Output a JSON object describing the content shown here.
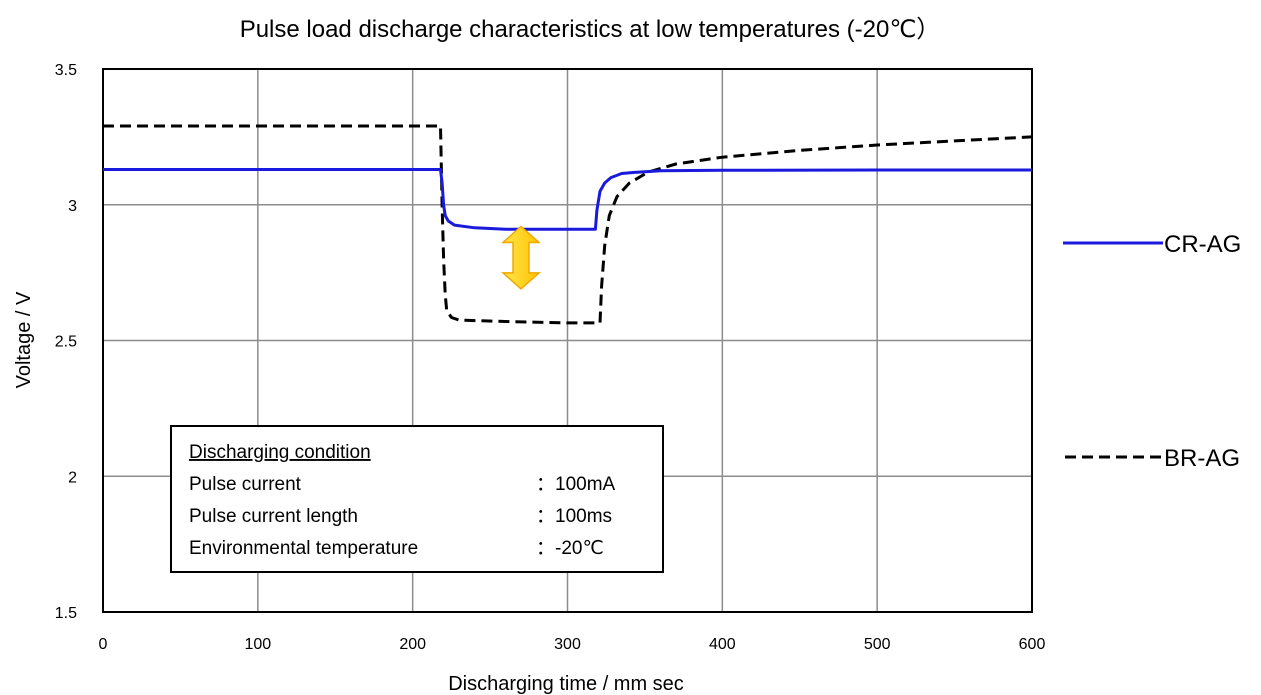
{
  "chart_data": {
    "type": "line",
    "title": "Pulse load discharge characteristics at low temperatures (-20℃）",
    "xlabel": "Discharging time / mm sec",
    "ylabel": "Voltage / V",
    "xlim": [
      0,
      600
    ],
    "ylim": [
      1.5,
      3.5
    ],
    "x_ticks": [
      "0",
      "100",
      "200",
      "300",
      "400",
      "500",
      "600"
    ],
    "y_ticks": [
      "1.5",
      "2",
      "2.5",
      "3",
      "3.5"
    ],
    "grid": true,
    "legend_position": "right",
    "series": [
      {
        "name": "CR-AG",
        "style": "solid",
        "color": "#1a1adc",
        "points": [
          [
            0,
            3.13
          ],
          [
            218,
            3.13
          ],
          [
            219,
            3.08
          ],
          [
            220,
            3.0
          ],
          [
            221,
            2.96
          ],
          [
            223,
            2.94
          ],
          [
            227,
            2.925
          ],
          [
            240,
            2.915
          ],
          [
            260,
            2.91
          ],
          [
            300,
            2.91
          ],
          [
            318,
            2.91
          ],
          [
            319,
            2.98
          ],
          [
            321,
            3.05
          ],
          [
            324,
            3.08
          ],
          [
            328,
            3.1
          ],
          [
            335,
            3.115
          ],
          [
            345,
            3.12
          ],
          [
            360,
            3.125
          ],
          [
            400,
            3.127
          ],
          [
            500,
            3.128
          ],
          [
            600,
            3.128
          ]
        ]
      },
      {
        "name": "BR-AG",
        "style": "dashed",
        "color": "#000000",
        "points": [
          [
            0,
            3.29
          ],
          [
            218,
            3.29
          ],
          [
            219,
            3.0
          ],
          [
            220,
            2.8
          ],
          [
            221,
            2.67
          ],
          [
            222,
            2.61
          ],
          [
            225,
            2.585
          ],
          [
            230,
            2.575
          ],
          [
            260,
            2.57
          ],
          [
            300,
            2.565
          ],
          [
            321,
            2.565
          ],
          [
            322,
            2.7
          ],
          [
            324,
            2.85
          ],
          [
            327,
            2.96
          ],
          [
            332,
            3.03
          ],
          [
            340,
            3.08
          ],
          [
            352,
            3.12
          ],
          [
            370,
            3.15
          ],
          [
            400,
            3.175
          ],
          [
            450,
            3.2
          ],
          [
            500,
            3.22
          ],
          [
            550,
            3.235
          ],
          [
            600,
            3.25
          ]
        ]
      }
    ],
    "annotation": {
      "type": "double-arrow",
      "x": 270,
      "y_from": 2.69,
      "y_to": 2.92,
      "color": "#ffd400"
    },
    "condition_box": {
      "heading": "Discharging condition",
      "rows": [
        {
          "label": "Pulse current",
          "value": "：100mA"
        },
        {
          "label": "Pulse current length",
          "value": "：100ms"
        },
        {
          "label": "Environmental temperature",
          "value": "：-20℃"
        }
      ]
    }
  }
}
